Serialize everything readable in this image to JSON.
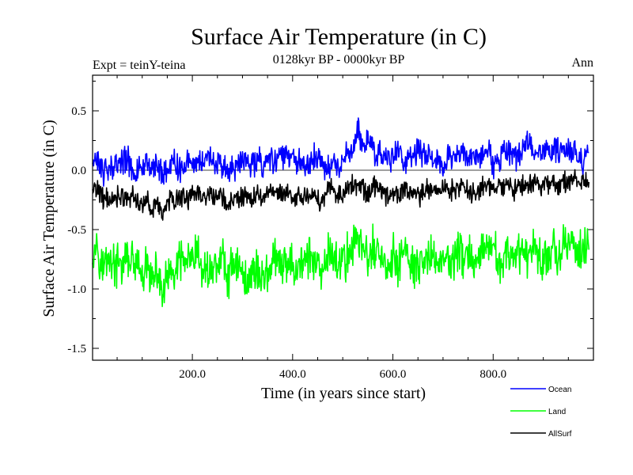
{
  "chart_data": {
    "type": "line",
    "title": "Surface Air Temperature (in C)",
    "subtitle": "0128kyr BP - 0000kyr BP",
    "experiment_label": "Expt = teinY-teina",
    "season_label": "Ann",
    "xlabel": "Time (in years since start)",
    "ylabel": "Surface Air Temperature (in C)",
    "xlim": [
      1,
      1000
    ],
    "ylim": [
      -1.6,
      0.8
    ],
    "xticks": [
      200,
      400,
      600,
      800
    ],
    "xtick_labels": [
      "200.0",
      "400.0",
      "600.0",
      "800.0"
    ],
    "yticks": [
      0.5,
      0.0,
      -0.5,
      -1.0,
      -1.5
    ],
    "ytick_labels": [
      "0.5",
      "0.0",
      "-0.5",
      "-1.0",
      "-1.5"
    ],
    "zero_line": 0.0,
    "legend_position": "bottom-right outside",
    "series": [
      {
        "name": "Ocean",
        "color": "#0000ff",
        "x_start": 1,
        "x_step": 10,
        "values": [
          0.05,
          0.08,
          -0.02,
          0.02,
          0.05,
          0.07,
          0.06,
          0.1,
          -0.02,
          0.01,
          0.05,
          0.02,
          0.06,
          0.05,
          -0.05,
          0.03,
          0.08,
          0.02,
          0.05,
          0.09,
          0.04,
          0.1,
          0.07,
          0.11,
          0.05,
          0.06,
          0.02,
          0.0,
          0.0,
          0.05,
          0.07,
          0.07,
          0.03,
          0.12,
          0.02,
          0.15,
          0.08,
          0.13,
          0.12,
          0.12,
          0.12,
          0.05,
          0.04,
          0.06,
          0.1,
          0.1,
          0.05,
          0.03,
          0.1,
          0.0,
          0.06,
          0.16,
          0.18,
          0.35,
          0.19,
          0.25,
          0.18,
          0.13,
          0.1,
          0.08,
          0.14,
          0.16,
          0.08,
          0.14,
          0.14,
          0.16,
          0.16,
          0.14,
          0.1,
          0.1,
          0.05,
          0.14,
          0.11,
          0.12,
          0.16,
          0.07,
          0.13,
          0.1,
          0.11,
          0.17,
          0.05,
          0.1,
          0.13,
          0.15,
          0.13,
          0.12,
          0.18,
          0.25,
          0.14,
          0.14,
          0.18,
          0.14,
          0.23,
          0.14,
          0.18,
          0.17,
          0.16,
          0.08,
          0.09,
          0.15
        ]
      },
      {
        "name": "Land",
        "color": "#00ff00",
        "x_start": 1,
        "x_step": 10,
        "values": [
          -0.65,
          -0.6,
          -0.85,
          -0.7,
          -0.78,
          -0.82,
          -0.8,
          -0.73,
          -0.78,
          -0.81,
          -0.93,
          -0.8,
          -0.96,
          -0.85,
          -1.05,
          -0.91,
          -0.88,
          -0.83,
          -0.74,
          -0.77,
          -0.78,
          -0.71,
          -0.87,
          -0.82,
          -0.83,
          -0.78,
          -0.72,
          -0.93,
          -0.74,
          -0.8,
          -0.88,
          -0.95,
          -0.83,
          -0.85,
          -0.9,
          -0.85,
          -0.76,
          -0.79,
          -0.81,
          -0.79,
          -0.8,
          -0.79,
          -0.78,
          -0.73,
          -0.76,
          -0.84,
          -0.93,
          -0.68,
          -0.72,
          -0.76,
          -0.78,
          -0.72,
          -0.6,
          -0.55,
          -0.68,
          -0.74,
          -0.66,
          -0.7,
          -0.75,
          -0.88,
          -0.74,
          -0.78,
          -0.7,
          -0.72,
          -0.82,
          -0.86,
          -0.82,
          -0.71,
          -0.74,
          -0.78,
          -0.71,
          -0.76,
          -0.77,
          -0.69,
          -0.73,
          -0.67,
          -0.84,
          -0.78,
          -0.66,
          -0.72,
          -0.65,
          -0.78,
          -0.7,
          -0.72,
          -0.8,
          -0.67,
          -0.72,
          -0.7,
          -0.58,
          -0.74,
          -0.74,
          -0.7,
          -0.66,
          -0.71,
          -0.62,
          -0.69,
          -0.56,
          -0.7,
          -0.66,
          -0.67
        ]
      },
      {
        "name": "AllSurf",
        "color": "#000000",
        "x_start": 1,
        "x_step": 10,
        "values": [
          -0.18,
          -0.15,
          -0.25,
          -0.22,
          -0.28,
          -0.2,
          -0.22,
          -0.26,
          -0.21,
          -0.27,
          -0.28,
          -0.24,
          -0.33,
          -0.25,
          -0.4,
          -0.27,
          -0.22,
          -0.25,
          -0.21,
          -0.24,
          -0.2,
          -0.18,
          -0.25,
          -0.19,
          -0.26,
          -0.22,
          -0.2,
          -0.3,
          -0.22,
          -0.24,
          -0.22,
          -0.26,
          -0.24,
          -0.2,
          -0.25,
          -0.2,
          -0.19,
          -0.21,
          -0.2,
          -0.2,
          -0.23,
          -0.22,
          -0.21,
          -0.2,
          -0.2,
          -0.25,
          -0.28,
          -0.15,
          -0.18,
          -0.21,
          -0.2,
          -0.16,
          -0.12,
          -0.1,
          -0.15,
          -0.19,
          -0.13,
          -0.15,
          -0.17,
          -0.24,
          -0.17,
          -0.2,
          -0.16,
          -0.15,
          -0.22,
          -0.22,
          -0.19,
          -0.14,
          -0.16,
          -0.18,
          -0.16,
          -0.16,
          -0.17,
          -0.13,
          -0.14,
          -0.15,
          -0.2,
          -0.17,
          -0.12,
          -0.15,
          -0.13,
          -0.17,
          -0.14,
          -0.13,
          -0.17,
          -0.12,
          -0.13,
          -0.11,
          -0.08,
          -0.14,
          -0.12,
          -0.13,
          -0.1,
          -0.12,
          -0.09,
          -0.1,
          -0.06,
          -0.12,
          -0.1,
          -0.1
        ]
      }
    ]
  }
}
